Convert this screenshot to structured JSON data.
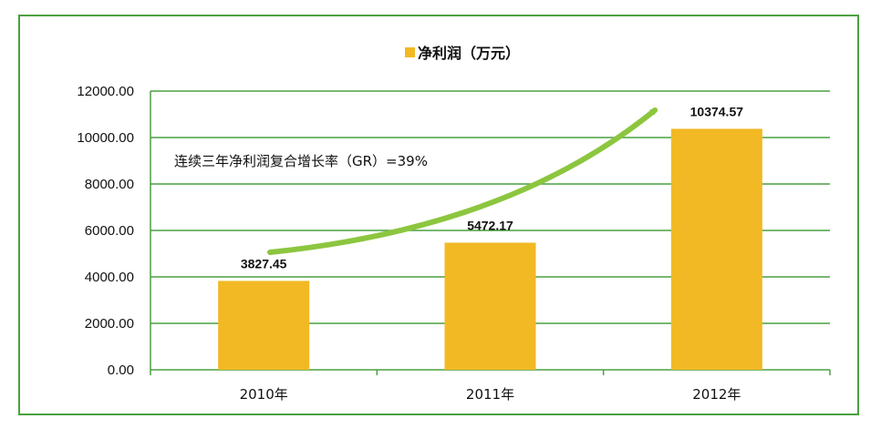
{
  "chart_data": {
    "type": "bar",
    "categories": [
      "2010年",
      "2011年",
      "2012年"
    ],
    "series": [
      {
        "name": "净利润（万元）",
        "values": [
          3827.45,
          5472.17,
          10374.57
        ]
      }
    ],
    "data_labels": [
      "3827.45",
      "5472.17",
      "10374.57"
    ],
    "y_ticks": [
      "0.00",
      "2000.00",
      "4000.00",
      "6000.00",
      "8000.00",
      "10000.00",
      "12000.00"
    ],
    "ylim": [
      0,
      12000
    ],
    "grid": true,
    "legend": {
      "position": "top",
      "label": "净利润（万元）"
    },
    "annotation": "连续三年净利润复合增长率（GR）=39%",
    "colors": {
      "bar": "#f2b924",
      "grid": "#4aa140",
      "arrow": "#8cc63f",
      "frame": "#4aa140"
    }
  }
}
